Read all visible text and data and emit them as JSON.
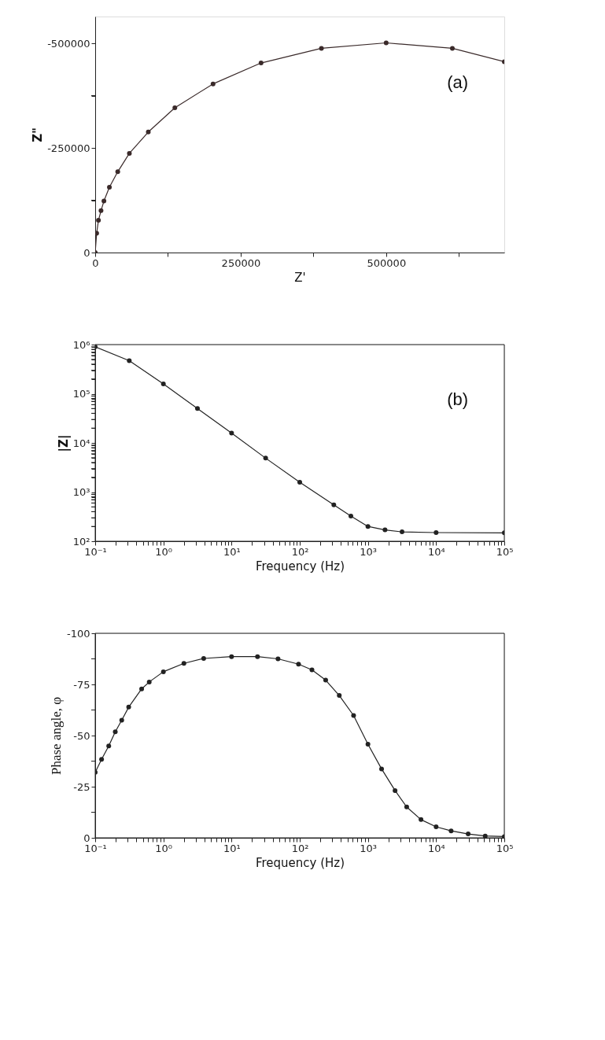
{
  "chart_data": [
    {
      "type": "line",
      "xlabel": "Z'",
      "ylabel": "Z\"",
      "annotations": [
        "(a)"
      ],
      "marker": "circle",
      "grid": false,
      "x": [
        0,
        2500,
        5600,
        10000,
        15000,
        24400,
        38750,
        58750,
        91250,
        136900,
        202500,
        285000,
        388750,
        500000,
        613750,
        703000
      ],
      "series": [
        {
          "color": "#3a2a2a",
          "values": [
            0,
            -46000,
            -77000,
            -100000,
            -123000,
            -156000,
            -193000,
            -237000,
            -288000,
            -346000,
            -403000,
            -453000,
            -488000,
            -501000,
            -488000,
            -456000
          ]
        }
      ],
      "xlim": [
        0,
        703000
      ],
      "ylim": [
        0,
        -564000
      ],
      "xticks": [
        0,
        {
          "value": 125000,
          "label": null
        },
        250000,
        {
          "value": 375000,
          "label": null
        },
        500000,
        {
          "value": 625000,
          "label": null
        }
      ],
      "yticks": [
        0,
        {
          "value": -125000,
          "label": null
        },
        -250000,
        {
          "value": -375000,
          "label": null
        },
        -500000
      ]
    },
    {
      "type": "line",
      "xlabel": "Frequency (Hz)",
      "ylabel": "|Z|",
      "annotations": [
        "(b)"
      ],
      "marker": "circle",
      "grid": false,
      "log": "xy",
      "x": [
        0.1,
        0.316,
        1,
        3.16,
        10,
        31.6,
        100,
        316,
        562,
        1000,
        1780,
        3160,
        10000,
        100000
      ],
      "series": [
        {
          "color": "#222222",
          "values": [
            900000,
            470000,
            158000,
            50000,
            15800,
            4900,
            1580,
            550,
            325,
            200,
            170,
            155,
            150,
            148
          ]
        }
      ],
      "xlim": [
        0.1,
        100000
      ],
      "ylim": [
        100,
        1000000
      ],
      "xticks": [
        {
          "value": 0.1,
          "label": "10⁻¹"
        },
        {
          "value": 0.2,
          "label": null
        },
        {
          "value": 0.3,
          "label": null
        },
        {
          "value": 0.4,
          "label": null
        },
        {
          "value": 0.5,
          "label": null
        },
        {
          "value": 0.6,
          "label": null
        },
        {
          "value": 0.7,
          "label": null
        },
        {
          "value": 0.8,
          "label": null
        },
        {
          "value": 0.9,
          "label": null
        },
        {
          "value": 1,
          "label": "10⁰"
        },
        {
          "value": 2,
          "label": null
        },
        {
          "value": 3,
          "label": null
        },
        {
          "value": 4,
          "label": null
        },
        {
          "value": 5,
          "label": null
        },
        {
          "value": 6,
          "label": null
        },
        {
          "value": 7,
          "label": null
        },
        {
          "value": 8,
          "label": null
        },
        {
          "value": 9,
          "label": null
        },
        {
          "value": 10,
          "label": "10¹"
        },
        {
          "value": 20,
          "label": null
        },
        {
          "value": 30,
          "label": null
        },
        {
          "value": 40,
          "label": null
        },
        {
          "value": 50,
          "label": null
        },
        {
          "value": 60,
          "label": null
        },
        {
          "value": 70,
          "label": null
        },
        {
          "value": 80,
          "label": null
        },
        {
          "value": 90,
          "label": null
        },
        {
          "value": 100,
          "label": "10²"
        },
        {
          "value": 200,
          "label": null
        },
        {
          "value": 300,
          "label": null
        },
        {
          "value": 400,
          "label": null
        },
        {
          "value": 500,
          "label": null
        },
        {
          "value": 600,
          "label": null
        },
        {
          "value": 700,
          "label": null
        },
        {
          "value": 800,
          "label": null
        },
        {
          "value": 900,
          "label": null
        },
        {
          "value": 1000,
          "label": "10³"
        },
        {
          "value": 2000,
          "label": null
        },
        {
          "value": 3000,
          "label": null
        },
        {
          "value": 4000,
          "label": null
        },
        {
          "value": 5000,
          "label": null
        },
        {
          "value": 6000,
          "label": null
        },
        {
          "value": 7000,
          "label": null
        },
        {
          "value": 8000,
          "label": null
        },
        {
          "value": 9000,
          "label": null
        },
        {
          "value": 10000,
          "label": "10⁴"
        },
        {
          "value": 20000,
          "label": null
        },
        {
          "value": 30000,
          "label": null
        },
        {
          "value": 40000,
          "label": null
        },
        {
          "value": 50000,
          "label": null
        },
        {
          "value": 60000,
          "label": null
        },
        {
          "value": 70000,
          "label": null
        },
        {
          "value": 80000,
          "label": null
        },
        {
          "value": 90000,
          "label": null
        },
        {
          "value": 100000,
          "label": "10⁵"
        }
      ],
      "yticks": [
        {
          "value": 100,
          "label": "10²"
        },
        {
          "value": 200,
          "label": null
        },
        {
          "value": 300,
          "label": null
        },
        {
          "value": 400,
          "label": null
        },
        {
          "value": 500,
          "label": null
        },
        {
          "value": 600,
          "label": null
        },
        {
          "value": 700,
          "label": null
        },
        {
          "value": 800,
          "label": null
        },
        {
          "value": 900,
          "label": null
        },
        {
          "value": 1000,
          "label": "10³"
        },
        {
          "value": 2000,
          "label": null
        },
        {
          "value": 3000,
          "label": null
        },
        {
          "value": 4000,
          "label": null
        },
        {
          "value": 5000,
          "label": null
        },
        {
          "value": 6000,
          "label": null
        },
        {
          "value": 7000,
          "label": null
        },
        {
          "value": 8000,
          "label": null
        },
        {
          "value": 9000,
          "label": null
        },
        {
          "value": 10000,
          "label": "10⁴"
        },
        {
          "value": 20000,
          "label": null
        },
        {
          "value": 30000,
          "label": null
        },
        {
          "value": 40000,
          "label": null
        },
        {
          "value": 50000,
          "label": null
        },
        {
          "value": 60000,
          "label": null
        },
        {
          "value": 70000,
          "label": null
        },
        {
          "value": 80000,
          "label": null
        },
        {
          "value": 90000,
          "label": null
        },
        {
          "value": 100000,
          "label": "10⁵"
        },
        {
          "value": 200000,
          "label": null
        },
        {
          "value": 300000,
          "label": null
        },
        {
          "value": 400000,
          "label": null
        },
        {
          "value": 500000,
          "label": null
        },
        {
          "value": 600000,
          "label": null
        },
        {
          "value": 700000,
          "label": null
        },
        {
          "value": 800000,
          "label": null
        },
        {
          "value": 900000,
          "label": null
        },
        {
          "value": 1000000,
          "label": "10⁶"
        }
      ]
    },
    {
      "type": "line",
      "xlabel": "Frequency (Hz)",
      "ylabel": "Phase angle, φ",
      "marker": "circle",
      "grid": false,
      "log": "x",
      "x": [
        0.1,
        0.124,
        0.158,
        0.197,
        0.245,
        0.31,
        0.48,
        0.62,
        1,
        2,
        3.9,
        10,
        24,
        48,
        96,
        151,
        240,
        380,
        616,
        1000,
        1585,
        2500,
        3700,
        6000,
        10000,
        16600,
        29500,
        52500,
        100000
      ],
      "series": [
        {
          "color": "#222222",
          "values": [
            -32,
            -38.4,
            -44.9,
            -51.8,
            -57.5,
            -63.9,
            -72.8,
            -76.2,
            -81.2,
            -85.3,
            -87.7,
            -88.6,
            -88.6,
            -87.5,
            -84.9,
            -82.1,
            -77.1,
            -69.6,
            -59.8,
            -45.8,
            -33.7,
            -23.1,
            -15.1,
            -8.9,
            -5.4,
            -3.4,
            -1.9,
            -0.9,
            -0.6
          ]
        }
      ],
      "xlim": [
        0.1,
        100000
      ],
      "ylim": [
        0,
        -100
      ],
      "xticks": [
        {
          "value": 0.1,
          "label": "10⁻¹"
        },
        {
          "value": 0.2,
          "label": null
        },
        {
          "value": 0.3,
          "label": null
        },
        {
          "value": 0.4,
          "label": null
        },
        {
          "value": 0.5,
          "label": null
        },
        {
          "value": 0.6,
          "label": null
        },
        {
          "value": 0.7,
          "label": null
        },
        {
          "value": 0.8,
          "label": null
        },
        {
          "value": 0.9,
          "label": null
        },
        {
          "value": 1,
          "label": "10⁰"
        },
        {
          "value": 2,
          "label": null
        },
        {
          "value": 3,
          "label": null
        },
        {
          "value": 4,
          "label": null
        },
        {
          "value": 5,
          "label": null
        },
        {
          "value": 6,
          "label": null
        },
        {
          "value": 7,
          "label": null
        },
        {
          "value": 8,
          "label": null
        },
        {
          "value": 9,
          "label": null
        },
        {
          "value": 10,
          "label": "10¹"
        },
        {
          "value": 20,
          "label": null
        },
        {
          "value": 30,
          "label": null
        },
        {
          "value": 40,
          "label": null
        },
        {
          "value": 50,
          "label": null
        },
        {
          "value": 60,
          "label": null
        },
        {
          "value": 70,
          "label": null
        },
        {
          "value": 80,
          "label": null
        },
        {
          "value": 90,
          "label": null
        },
        {
          "value": 100,
          "label": "10²"
        },
        {
          "value": 200,
          "label": null
        },
        {
          "value": 300,
          "label": null
        },
        {
          "value": 400,
          "label": null
        },
        {
          "value": 500,
          "label": null
        },
        {
          "value": 600,
          "label": null
        },
        {
          "value": 700,
          "label": null
        },
        {
          "value": 800,
          "label": null
        },
        {
          "value": 900,
          "label": null
        },
        {
          "value": 1000,
          "label": "10³"
        },
        {
          "value": 2000,
          "label": null
        },
        {
          "value": 3000,
          "label": null
        },
        {
          "value": 4000,
          "label": null
        },
        {
          "value": 5000,
          "label": null
        },
        {
          "value": 6000,
          "label": null
        },
        {
          "value": 7000,
          "label": null
        },
        {
          "value": 8000,
          "label": null
        },
        {
          "value": 9000,
          "label": null
        },
        {
          "value": 10000,
          "label": "10⁴"
        },
        {
          "value": 20000,
          "label": null
        },
        {
          "value": 30000,
          "label": null
        },
        {
          "value": 40000,
          "label": null
        },
        {
          "value": 50000,
          "label": null
        },
        {
          "value": 60000,
          "label": null
        },
        {
          "value": 70000,
          "label": null
        },
        {
          "value": 80000,
          "label": null
        },
        {
          "value": 90000,
          "label": null
        },
        {
          "value": 100000,
          "label": "10⁵"
        }
      ],
      "yticks": [
        0,
        {
          "value": -12.5,
          "label": null
        },
        -25,
        {
          "value": -37.5,
          "label": null
        },
        -50,
        {
          "value": -62.5,
          "label": null
        },
        -75,
        {
          "value": -87.5,
          "label": null
        },
        -100
      ]
    }
  ]
}
